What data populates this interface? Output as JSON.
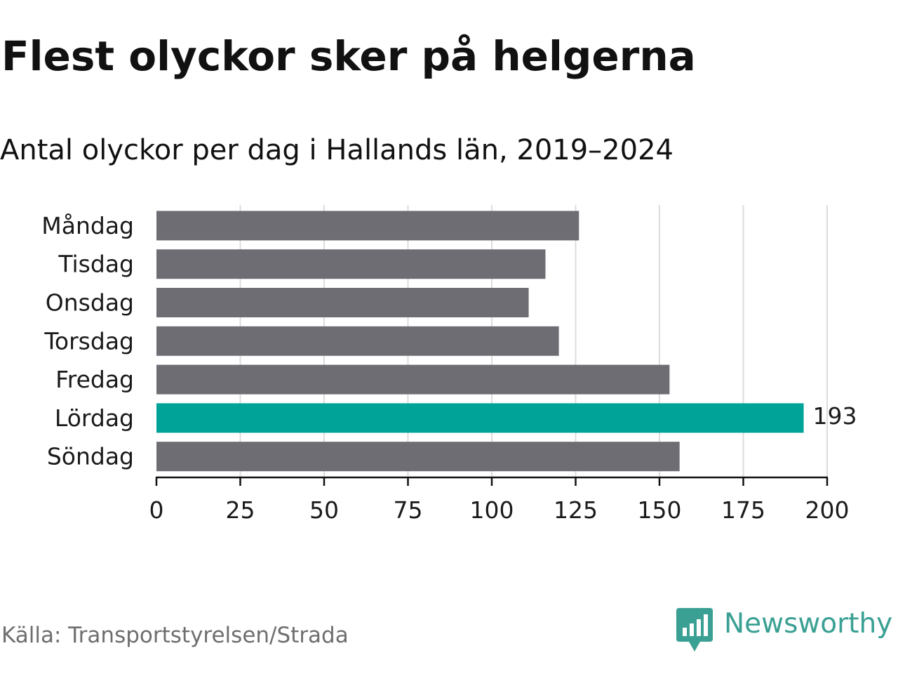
{
  "title": "Flest olyckor sker på helgerna",
  "subtitle": "Antal olyckor per dag i Hallands län, 2019–2024",
  "source": "Källa: Transportstyrelsen/Strada",
  "brand": {
    "name": "Newsworthy",
    "logo_icon": "bar-chart-speech-bubble-icon",
    "color": "#3aa093"
  },
  "colors": {
    "bar_default": "#6e6d74",
    "bar_highlight": "#00a398",
    "grid": "#dcdcdc",
    "axis": "#111111",
    "text": "#1a1a1a"
  },
  "chart_data": {
    "type": "bar",
    "orientation": "horizontal",
    "categories": [
      "Måndag",
      "Tisdag",
      "Onsdag",
      "Torsdag",
      "Fredag",
      "Lördag",
      "Söndag"
    ],
    "values": [
      126,
      116,
      111,
      120,
      153,
      193,
      156
    ],
    "highlight_index": 5,
    "data_labels": [
      {
        "index": 5,
        "text": "193"
      }
    ],
    "xlim": [
      0,
      200
    ],
    "xticks": [
      0,
      25,
      50,
      75,
      100,
      125,
      150,
      175,
      200
    ],
    "grid": true
  }
}
